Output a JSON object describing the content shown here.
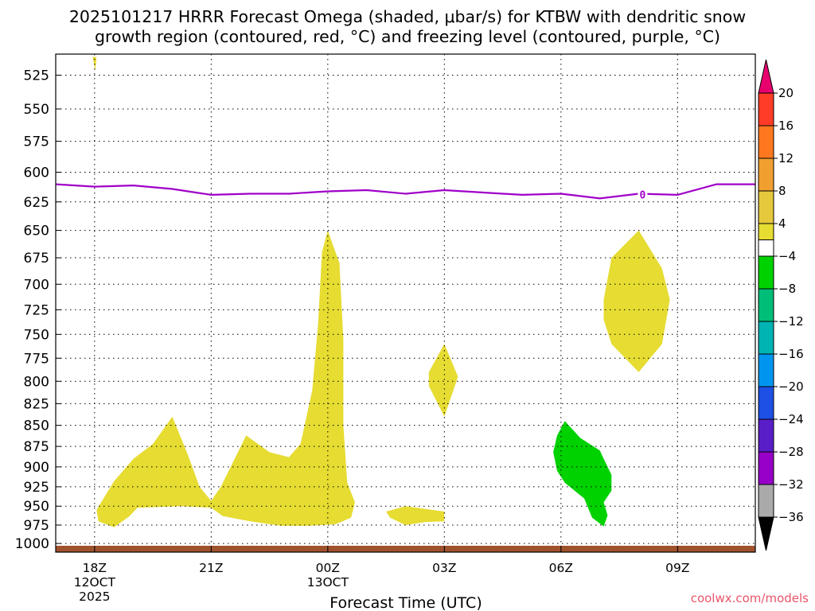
{
  "title_line1": "2025101217 HRRR Forecast Omega (shaded, μbar/s) for KTBW with dendritic snow",
  "title_line2": "growth region (contoured, red, °C) and freezing level (contoured, purple, °C)",
  "xlabel": "Forecast Time (UTC)",
  "watermark": "coolwx.com/models",
  "chart_data": {
    "type": "heatmap",
    "title": "2025101217 HRRR Forecast Omega (shaded, μbar/s) for KTBW with dendritic snow growth region (contoured, red, °C) and freezing level (contoured, purple, °C)",
    "xlabel": "Forecast Time (UTC)",
    "ylabel": "",
    "x_unit": "hours since 2025-10-12 17Z",
    "xlim": [
      0,
      18
    ],
    "ylim": [
      1012,
      510
    ],
    "y_scale": "log-pressure (inverted)",
    "grid": true,
    "x_ticks": [
      {
        "x": 1,
        "label": "18Z",
        "sub1": "12OCT",
        "sub2": "2025"
      },
      {
        "x": 4,
        "label": "21Z",
        "sub1": "",
        "sub2": ""
      },
      {
        "x": 7,
        "label": "00Z",
        "sub1": "13OCT",
        "sub2": ""
      },
      {
        "x": 10,
        "label": "03Z",
        "sub1": "",
        "sub2": ""
      },
      {
        "x": 13,
        "label": "06Z",
        "sub1": "",
        "sub2": ""
      },
      {
        "x": 16,
        "label": "09Z",
        "sub1": "",
        "sub2": ""
      }
    ],
    "y_ticks": [
      525,
      550,
      575,
      600,
      625,
      650,
      675,
      700,
      725,
      750,
      775,
      800,
      825,
      850,
      875,
      900,
      925,
      950,
      975,
      1000
    ],
    "colorbar": {
      "unit": "μbar/s",
      "levels": [
        "20",
        "16",
        "12",
        "8",
        "4",
        "−4",
        "−8",
        "−12",
        "−16",
        "−20",
        "−24",
        "−28",
        "−32",
        "−36"
      ],
      "colors": [
        "#e8006e",
        "#ff3c28",
        "#ff7820",
        "#f0a030",
        "#e6c83c",
        "#e6dc32",
        "#ffffff",
        "#00d200",
        "#00be78",
        "#00b4b4",
        "#0096f0",
        "#1e50e6",
        "#5a1ec8",
        "#9600c8",
        "#aaaaaa",
        "#000000"
      ]
    },
    "freezing_level": {
      "label": "0",
      "color": "#a000c8",
      "x": [
        0,
        1,
        2,
        3,
        4,
        5,
        6,
        7,
        8,
        9,
        10,
        11,
        12,
        13,
        14,
        15,
        16,
        17,
        18
      ],
      "p": [
        610,
        612,
        611,
        614,
        619,
        618,
        618,
        616,
        615,
        618,
        615,
        617,
        619,
        618,
        622,
        618,
        619,
        610,
        610
      ]
    },
    "surface_color": "#a0522d",
    "shaded_regions": [
      {
        "name": "omega-4-to-8-a",
        "color": "#e6dc32",
        "pts": [
          [
            0.95,
            512
          ],
          [
            1.05,
            512
          ],
          [
            1.02,
            522
          ]
        ]
      },
      {
        "name": "omega-4-to-8-b",
        "color": "#e6dc32",
        "pts": [
          [
            1.05,
            955
          ],
          [
            1.5,
            918
          ],
          [
            2.0,
            890
          ],
          [
            2.5,
            872
          ],
          [
            3.0,
            840
          ],
          [
            3.4,
            885
          ],
          [
            3.7,
            925
          ],
          [
            4.0,
            943
          ],
          [
            4.25,
            925
          ],
          [
            4.5,
            900
          ],
          [
            4.9,
            862
          ],
          [
            5.5,
            882
          ],
          [
            6.0,
            888
          ],
          [
            6.3,
            872
          ],
          [
            6.6,
            810
          ],
          [
            6.75,
            740
          ],
          [
            6.85,
            670
          ],
          [
            7.0,
            650
          ],
          [
            7.3,
            680
          ],
          [
            7.4,
            755
          ],
          [
            7.4,
            850
          ],
          [
            7.5,
            920
          ],
          [
            7.7,
            945
          ],
          [
            7.6,
            965
          ],
          [
            7.2,
            974
          ],
          [
            6.5,
            976
          ],
          [
            5.8,
            976
          ],
          [
            5.0,
            970
          ],
          [
            4.3,
            963
          ],
          [
            4.0,
            952
          ],
          [
            3.2,
            950
          ],
          [
            2.1,
            952
          ],
          [
            1.9,
            963
          ],
          [
            1.5,
            978
          ],
          [
            1.1,
            970
          ]
        ]
      },
      {
        "name": "omega-4-to-8-c",
        "color": "#e6dc32",
        "pts": [
          [
            9.6,
            790
          ],
          [
            10.0,
            760
          ],
          [
            10.35,
            795
          ],
          [
            10.0,
            840
          ],
          [
            9.6,
            805
          ]
        ]
      },
      {
        "name": "omega-4-to-8-d",
        "color": "#e6dc32",
        "pts": [
          [
            8.5,
            957
          ],
          [
            9.0,
            950
          ],
          [
            10.0,
            957
          ],
          [
            10.0,
            970
          ],
          [
            9.5,
            971
          ],
          [
            9.0,
            975
          ],
          [
            8.6,
            965
          ]
        ]
      },
      {
        "name": "omega-4-to-8-e",
        "color": "#e6dc32",
        "pts": [
          [
            14.1,
            715
          ],
          [
            14.3,
            675
          ],
          [
            15.0,
            650
          ],
          [
            15.6,
            685
          ],
          [
            15.8,
            715
          ],
          [
            15.6,
            760
          ],
          [
            15.0,
            790
          ],
          [
            14.3,
            760
          ],
          [
            14.1,
            735
          ]
        ]
      },
      {
        "name": "omega-minus-4-to-minus-8",
        "color": "#00d200",
        "pts": [
          [
            12.8,
            882
          ],
          [
            12.9,
            862
          ],
          [
            13.1,
            845
          ],
          [
            13.5,
            865
          ],
          [
            14.0,
            880
          ],
          [
            14.1,
            890
          ],
          [
            14.3,
            910
          ],
          [
            14.3,
            930
          ],
          [
            14.1,
            945
          ],
          [
            14.2,
            962
          ],
          [
            14.1,
            977
          ],
          [
            13.8,
            965
          ],
          [
            13.6,
            940
          ],
          [
            13.1,
            920
          ],
          [
            12.9,
            905
          ]
        ]
      }
    ]
  }
}
